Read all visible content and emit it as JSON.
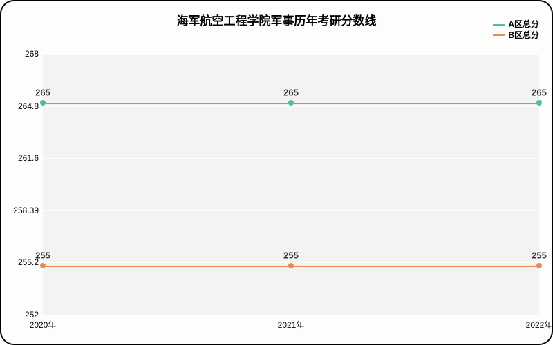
{
  "chart": {
    "type": "line",
    "title": "海军航空工程学院军事历年考研分数线",
    "title_fontsize": 17,
    "background_color": "#fdfdfb",
    "plot_background_color": "#f3f4f2",
    "grid_color": "#fcfdfa",
    "border_color": "#000000",
    "font_family": "SimHei, Microsoft YaHei, Arial, sans-serif",
    "ylim": [
      252,
      268
    ],
    "yticks": [
      {
        "value": 252,
        "label": "252"
      },
      {
        "value": 255.2,
        "label": "255.2"
      },
      {
        "value": 258.39,
        "label": "258.39"
      },
      {
        "value": 261.6,
        "label": "261.6"
      },
      {
        "value": 264.8,
        "label": "264.8"
      },
      {
        "value": 268,
        "label": "268"
      }
    ],
    "ytick_fontsize": 12,
    "categories": [
      "2020年",
      "2021年",
      "2022年"
    ],
    "xtick_fontsize": 12,
    "series": [
      {
        "name": "A区总分",
        "color": "#4cbfa3",
        "marker_color": "#4cbfa3",
        "line_width": 2,
        "data": [
          265,
          265,
          265
        ],
        "point_labels": [
          "265",
          "265",
          "265"
        ]
      },
      {
        "name": "B区总分",
        "color": "#e98a55",
        "marker_color": "#e98a55",
        "line_width": 2,
        "data": [
          255,
          255,
          255
        ],
        "point_labels": [
          "255",
          "255",
          "255"
        ]
      }
    ],
    "legend": {
      "position": "top-right",
      "fontsize": 12,
      "font_weight": 600
    },
    "point_label_color": "#333333",
    "point_label_fontsize": 13,
    "point_label_font_weight": 700
  }
}
